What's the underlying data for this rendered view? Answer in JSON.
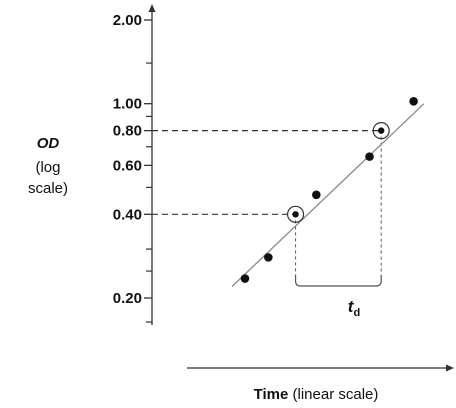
{
  "chart_data": {
    "type": "scatter",
    "y_scale": "log",
    "yaxis": {
      "label": "OD",
      "label_note": "(log",
      "label_note2": "scale)",
      "major_ticks": [
        {
          "value": 2.0,
          "label": "2.00"
        },
        {
          "value": 1.0,
          "label": "1.00"
        },
        {
          "value": 0.8,
          "label": "0.80"
        },
        {
          "value": 0.6,
          "label": "0.60"
        },
        {
          "value": 0.4,
          "label": "0.40"
        },
        {
          "value": 0.2,
          "label": "0.20"
        }
      ],
      "minor_ticks": [
        0.9,
        0.7,
        0.5,
        0.3
      ]
    },
    "xaxis": {
      "label_bold": "Time",
      "label_rest": " (linear scale)"
    },
    "points": [
      {
        "x": 0.5,
        "y": 0.235
      },
      {
        "x": 1.4,
        "y": 0.28
      },
      {
        "x": 3.25,
        "y": 0.47
      },
      {
        "x": 5.3,
        "y": 0.645
      },
      {
        "x": 7.0,
        "y": 1.02
      }
    ],
    "fit_line": {
      "from": {
        "x": 0.0,
        "y": 0.22
      },
      "to": {
        "x": 7.4,
        "y": 1.0
      }
    },
    "highlighted_points": [
      {
        "x": 2.45,
        "y": 0.4
      },
      {
        "x": 5.75,
        "y": 0.8
      }
    ],
    "doubling_time": {
      "label": "t",
      "sub": "d",
      "from_x": 2.45,
      "to_x": 5.75
    },
    "x_domain": [
      -2.5,
      10.0
    ],
    "y_domain": [
      0.18,
      2.1
    ]
  }
}
